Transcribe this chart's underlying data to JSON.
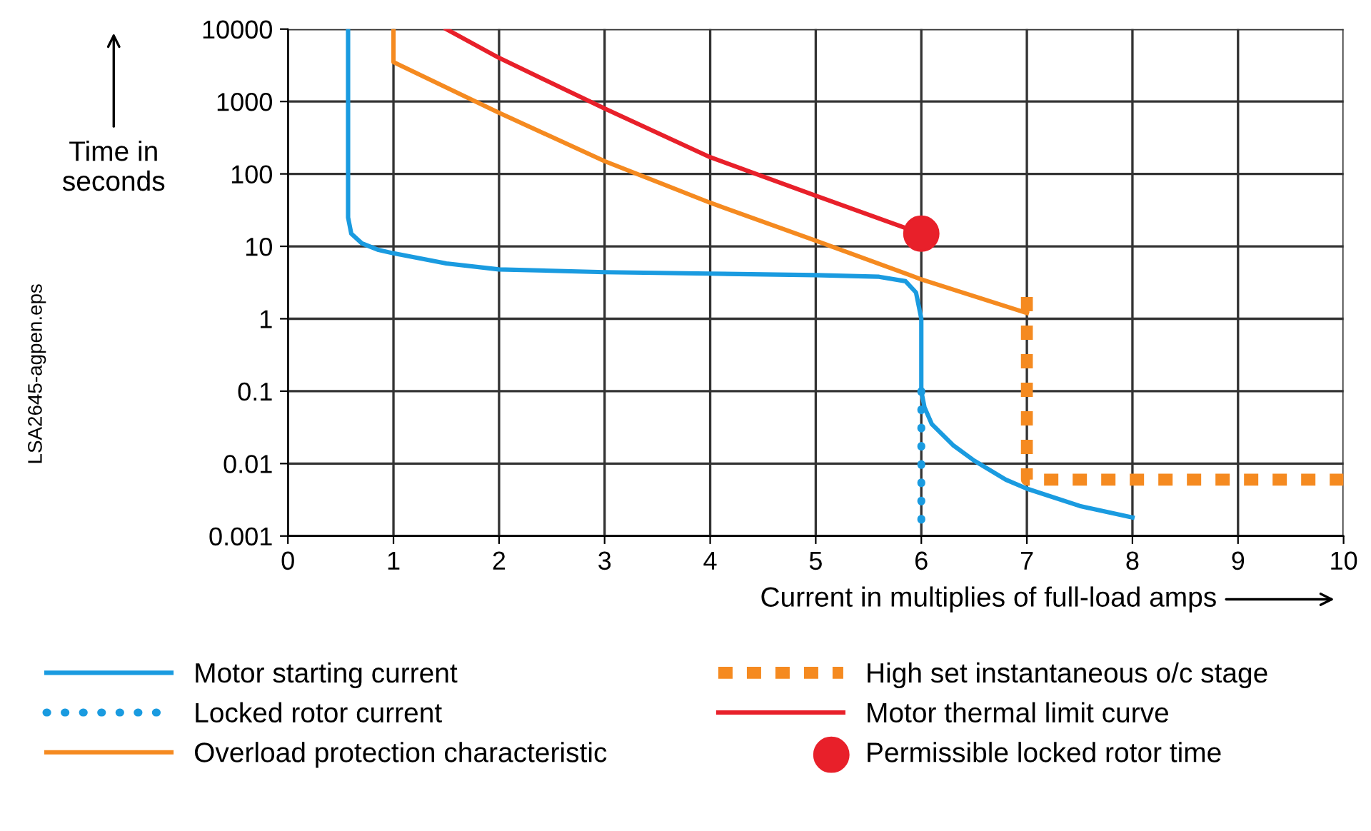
{
  "chart_data": {
    "type": "line",
    "xlabel": "Current in multiplies of full-load amps",
    "ylabel": "Time in\nseconds",
    "log": "y",
    "xlim": [
      0,
      10
    ],
    "ylim": [
      0.001,
      10000
    ],
    "xticks": [
      0,
      1,
      2,
      3,
      4,
      5,
      6,
      7,
      8,
      9,
      10
    ],
    "yticks": [
      {
        "value": 0.001,
        "label": "0.001"
      },
      {
        "value": 0.01,
        "label": "0.01"
      },
      {
        "value": 0.1,
        "label": "0.1"
      },
      {
        "value": 1,
        "label": "1"
      },
      {
        "value": 10,
        "label": "10"
      },
      {
        "value": 100,
        "label": "100"
      },
      {
        "value": 1000,
        "label": "1000"
      },
      {
        "value": 10000,
        "label": "10000"
      }
    ],
    "grid": true,
    "legend": "bottom",
    "annotations": [
      "LSA2645-agpen.eps"
    ],
    "series": [
      {
        "name": "Motor starting current",
        "color": "#1a9be0",
        "line_style": "solid",
        "x": [
          0.57,
          0.57,
          0.6,
          0.7,
          0.85,
          1,
          1.5,
          2,
          3,
          4,
          5,
          5.6,
          5.85,
          5.95,
          6,
          6,
          6.03,
          6.1,
          6.3,
          6.5,
          6.8,
          7,
          7.5,
          8
        ],
        "values": [
          10000,
          25,
          15,
          11,
          9,
          8,
          5.8,
          4.8,
          4.4,
          4.2,
          4.0,
          3.8,
          3.3,
          2.3,
          1,
          0.1,
          0.06,
          0.035,
          0.018,
          0.011,
          0.006,
          0.0045,
          0.0026,
          0.0018
        ]
      },
      {
        "name": "Locked rotor current",
        "color": "#1a9be0",
        "line_style": "dotted",
        "x": [
          6,
          6
        ],
        "values": [
          0.1,
          0.001
        ]
      },
      {
        "name": "Overload protection characteristic",
        "color": "#f58a20",
        "line_style": "solid",
        "x": [
          1,
          1,
          2,
          3,
          4,
          5,
          6,
          7
        ],
        "values": [
          10000,
          3500,
          700,
          150,
          40,
          12,
          3.5,
          1.2
        ]
      },
      {
        "name": "High set instantaneous o/c stage",
        "color": "#f58a20",
        "line_style": "dashed",
        "x": [
          7,
          7,
          10
        ],
        "values": [
          2,
          0.006,
          0.006
        ]
      },
      {
        "name": "Motor thermal limit curve",
        "color": "#e8202a",
        "line_style": "solid",
        "x": [
          1.5,
          2,
          3,
          4,
          5,
          6
        ],
        "values": [
          10000,
          4000,
          800,
          170,
          50,
          15
        ]
      },
      {
        "name": "Permissible locked rotor time",
        "color": "#e8202a",
        "type": "scatter",
        "marker": "circle",
        "x": [
          6
        ],
        "values": [
          15
        ]
      }
    ]
  }
}
